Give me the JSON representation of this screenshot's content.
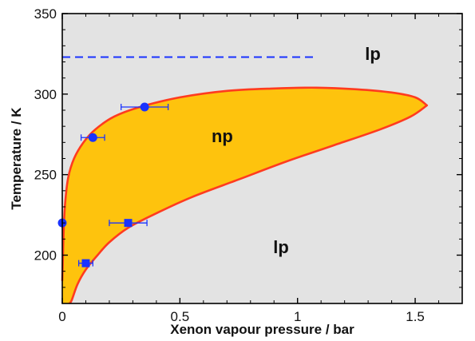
{
  "chart_data": {
    "type": "scatter",
    "xlabel": "Xenon vapour pressure / bar",
    "ylabel": "Temperature / K",
    "xlim": [
      0,
      1.7
    ],
    "ylim": [
      170,
      350
    ],
    "xticks": [
      "0",
      "0.5",
      "1",
      "1.5"
    ],
    "yticks": [
      "200",
      "250",
      "300",
      "350"
    ],
    "grid": false,
    "colors": {
      "plot_background": "#e3e3e3",
      "region_fill": "#fec30d",
      "boundary": "#ff3b1f",
      "points": "#1a33ff",
      "dashed_line": "#1a33ff"
    },
    "region_labels": [
      {
        "text": "lp",
        "x": 1.32,
        "y": 324
      },
      {
        "text": "np",
        "x": 0.68,
        "y": 273
      },
      {
        "text": "lp",
        "x": 0.93,
        "y": 204
      }
    ],
    "boundary_upper": [
      {
        "x": 0.0,
        "y": 184
      },
      {
        "x": 0.003,
        "y": 200
      },
      {
        "x": 0.006,
        "y": 215
      },
      {
        "x": 0.012,
        "y": 232
      },
      {
        "x": 0.025,
        "y": 248
      },
      {
        "x": 0.05,
        "y": 260
      },
      {
        "x": 0.09,
        "y": 270
      },
      {
        "x": 0.14,
        "y": 278
      },
      {
        "x": 0.22,
        "y": 286
      },
      {
        "x": 0.33,
        "y": 292
      },
      {
        "x": 0.5,
        "y": 298
      },
      {
        "x": 0.7,
        "y": 302
      },
      {
        "x": 0.9,
        "y": 303.5
      },
      {
        "x": 1.08,
        "y": 304
      },
      {
        "x": 1.25,
        "y": 303
      },
      {
        "x": 1.4,
        "y": 301
      },
      {
        "x": 1.5,
        "y": 298
      },
      {
        "x": 1.55,
        "y": 293
      }
    ],
    "boundary_lower": [
      {
        "x": 1.55,
        "y": 293
      },
      {
        "x": 1.48,
        "y": 286
      },
      {
        "x": 1.35,
        "y": 278
      },
      {
        "x": 1.15,
        "y": 268
      },
      {
        "x": 0.95,
        "y": 258
      },
      {
        "x": 0.75,
        "y": 247
      },
      {
        "x": 0.55,
        "y": 236
      },
      {
        "x": 0.4,
        "y": 226
      },
      {
        "x": 0.28,
        "y": 217
      },
      {
        "x": 0.2,
        "y": 208
      },
      {
        "x": 0.15,
        "y": 200
      },
      {
        "x": 0.1,
        "y": 191
      },
      {
        "x": 0.065,
        "y": 182
      },
      {
        "x": 0.04,
        "y": 172
      },
      {
        "x": 0.03,
        "y": 170
      }
    ],
    "series": [
      {
        "marker": "circle",
        "points": [
          {
            "x": 0.0,
            "y": 220
          },
          {
            "x": 0.13,
            "y": 273,
            "xerr": 0.05
          },
          {
            "x": 0.35,
            "y": 292,
            "xerr": 0.1
          }
        ]
      },
      {
        "marker": "square",
        "points": [
          {
            "x": 0.1,
            "y": 195,
            "xerr": 0.03
          },
          {
            "x": 0.28,
            "y": 220,
            "xerr": 0.08
          }
        ]
      }
    ],
    "reference_line": {
      "style": "dashed",
      "y": 323,
      "x_start": 0.0,
      "x_end": 1.08
    }
  }
}
